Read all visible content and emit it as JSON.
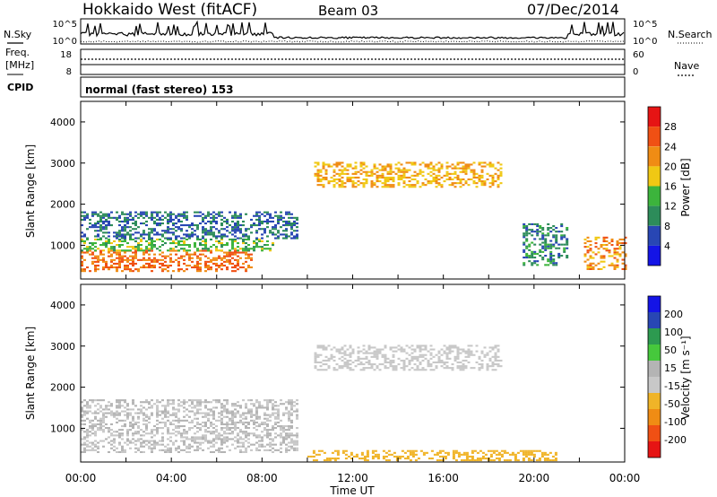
{
  "header": {
    "station": "Hokkaido West (fitACF)",
    "beam": "Beam 03",
    "date": "07/Dec/2014"
  },
  "noise_panel": {
    "left_label": "N.Sky",
    "right_label": "N.Search",
    "left_ticks": [
      "10^5",
      "10^0"
    ],
    "right_ticks": [
      "10^5",
      "10^0"
    ]
  },
  "freq_panel": {
    "left_label_1": "Freq.",
    "left_label_2": "[MHz]",
    "right_label": "Nave",
    "left_ticks": [
      "18",
      "8"
    ],
    "right_ticks": [
      "60",
      "0"
    ]
  },
  "cpid": {
    "label": "CPID",
    "value": "normal (fast stereo) 153"
  },
  "colors": {
    "power_scale": [
      "#1414e6",
      "#2846b4",
      "#2d8c5a",
      "#3cb43c",
      "#f0c814",
      "#f08c14",
      "#f05014",
      "#e61414"
    ],
    "velocity_scale": [
      "#e61414",
      "#f05014",
      "#f08c14",
      "#f0b428",
      "#c8c8c8",
      "#b4b4b4",
      "#46c83c",
      "#2d9a50",
      "#2846b4",
      "#1414e6"
    ]
  },
  "chart_data": [
    {
      "type": "heatmap",
      "panel": "power",
      "ylabel": "Slant Range [km]",
      "ylim": [
        180,
        4500
      ],
      "yticks": [
        "1000",
        "2000",
        "3000",
        "4000"
      ],
      "xlim": [
        0,
        24
      ],
      "colorbar": {
        "label": "Power [dB]",
        "ticks": [
          "28",
          "24",
          "20",
          "16",
          "12",
          "8",
          "4"
        ],
        "range": [
          0,
          32
        ]
      },
      "bands": [
        {
          "range_km": [
            350,
            850
          ],
          "t": [
            0,
            7.5
          ],
          "value": 24
        },
        {
          "range_km": [
            850,
            1150
          ],
          "t": [
            0,
            8.5
          ],
          "value": 14
        },
        {
          "range_km": [
            1150,
            1800
          ],
          "t": [
            0,
            9.5
          ],
          "value": 8
        },
        {
          "range_km": [
            2400,
            3000
          ],
          "t": [
            10.3,
            18.5
          ],
          "value": 20
        },
        {
          "range_km": [
            500,
            1500
          ],
          "t": [
            19.5,
            21.5
          ],
          "value": 10
        },
        {
          "range_km": [
            400,
            1200
          ],
          "t": [
            22.2,
            24
          ],
          "value": 22
        }
      ]
    },
    {
      "type": "heatmap",
      "panel": "velocity",
      "ylabel": "Slant Range [km]",
      "ylim": [
        180,
        4500
      ],
      "yticks": [
        "1000",
        "2000",
        "3000",
        "4000"
      ],
      "xlim": [
        0,
        24
      ],
      "xticks": [
        "00:00",
        "04:00",
        "08:00",
        "12:00",
        "16:00",
        "20:00",
        "00:00"
      ],
      "xlabel": "Time UT",
      "colorbar": {
        "label": "Velocity [m s⁻¹]",
        "ticks": [
          "200",
          "100",
          "50",
          "15",
          "-15",
          "-50",
          "-100",
          "-200"
        ],
        "range": [
          -250,
          250
        ]
      },
      "bands": [
        {
          "range_km": [
            400,
            1700
          ],
          "t": [
            0,
            9.5
          ],
          "value": 0
        },
        {
          "range_km": [
            2400,
            3000
          ],
          "t": [
            10.3,
            18.5
          ],
          "value": -10
        },
        {
          "range_km": [
            200,
            450
          ],
          "t": [
            10,
            21
          ],
          "value": -60
        }
      ]
    }
  ]
}
